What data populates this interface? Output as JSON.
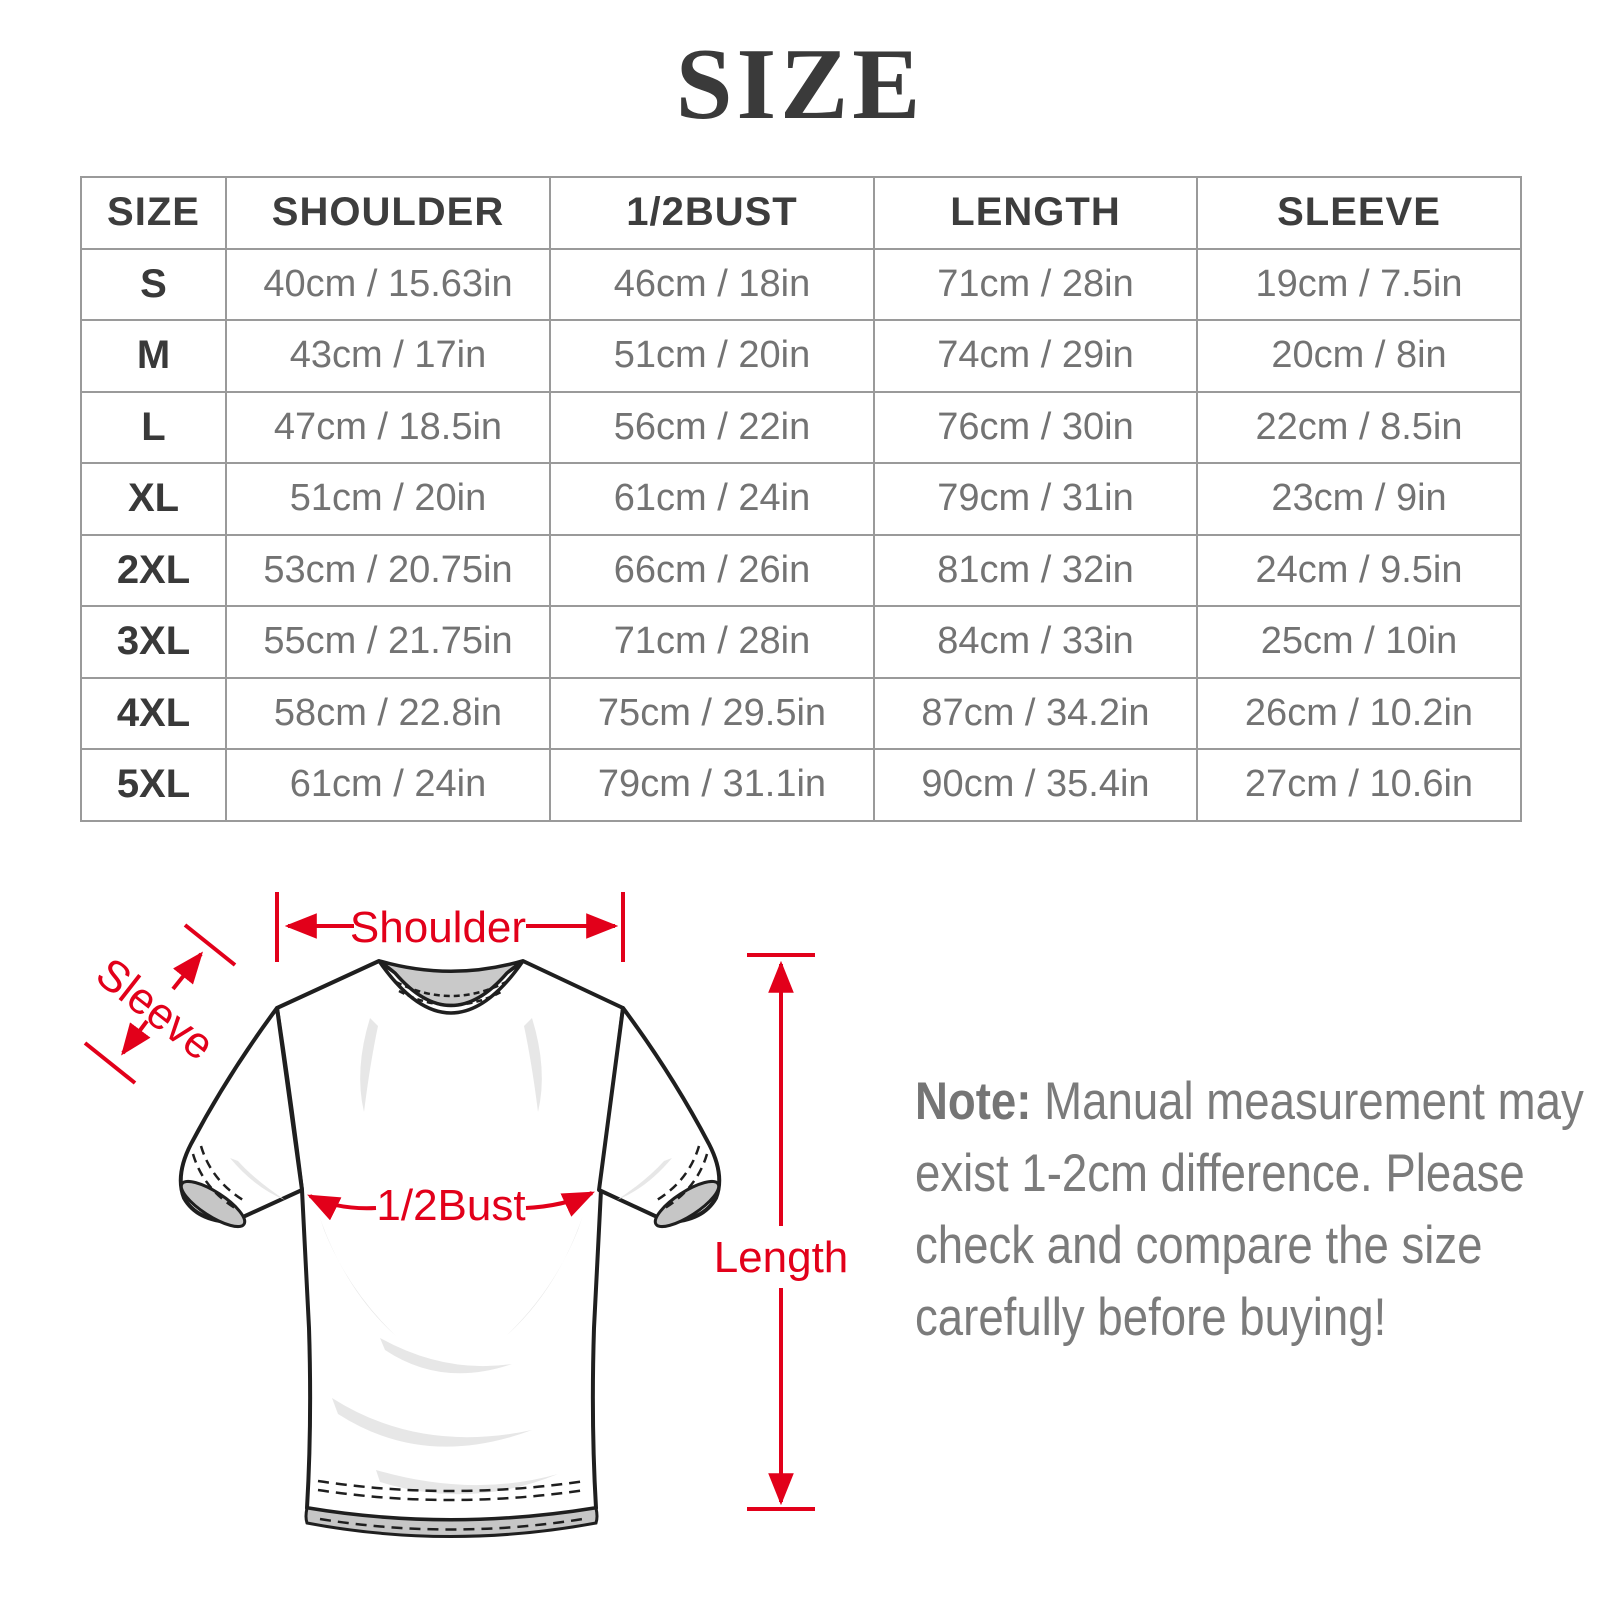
{
  "title": "SIZE",
  "colors": {
    "accent_red": "#e2001a",
    "grid_line": "#9a9a9a",
    "header_text": "#3d3d3d",
    "cell_text": "#737373",
    "note_text": "#7b7b7b",
    "title_text": "#3a3a3a",
    "collar_gray": "#c9c9c9",
    "outline_black": "#1f1f1f"
  },
  "table": {
    "headers": [
      "SIZE",
      "SHOULDER",
      "1/2BUST",
      "LENGTH",
      "SLEEVE"
    ],
    "rows": [
      [
        "S",
        "40cm / 15.63in",
        "46cm / 18in",
        "71cm / 28in",
        "19cm / 7.5in"
      ],
      [
        "M",
        "43cm / 17in",
        "51cm / 20in",
        "74cm / 29in",
        "20cm / 8in"
      ],
      [
        "L",
        "47cm / 18.5in",
        "56cm / 22in",
        "76cm / 30in",
        "22cm / 8.5in"
      ],
      [
        "XL",
        "51cm / 20in",
        "61cm / 24in",
        "79cm / 31in",
        "23cm / 9in"
      ],
      [
        "2XL",
        "53cm / 20.75in",
        "66cm / 26in",
        "81cm / 32in",
        "24cm / 9.5in"
      ],
      [
        "3XL",
        "55cm / 21.75in",
        "71cm / 28in",
        "84cm / 33in",
        "25cm / 10in"
      ],
      [
        "4XL",
        "58cm / 22.8in",
        "75cm / 29.5in",
        "87cm / 34.2in",
        "26cm / 10.2in"
      ],
      [
        "5XL",
        "61cm / 24in",
        "79cm / 31.1in",
        "90cm / 35.4in",
        "27cm / 10.6in"
      ]
    ]
  },
  "diagram": {
    "labels": {
      "shoulder": "Shoulder",
      "sleeve": "Sleeve",
      "half_bust": "1/2Bust",
      "length": "Length"
    }
  },
  "note": {
    "label": "Note:",
    "lines": [
      "Manual measurement may",
      "exist 1-2cm difference. Please",
      "check and compare the size",
      "carefully before buying!"
    ]
  }
}
